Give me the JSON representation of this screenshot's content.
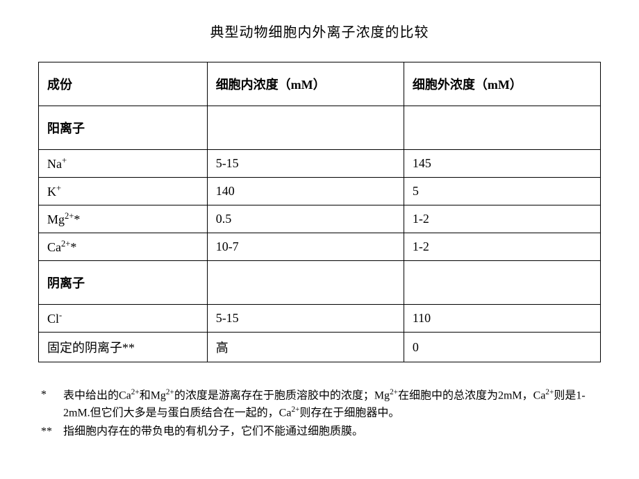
{
  "title": "典型动物细胞内外离子浓度的比较",
  "columns": {
    "c1": "成份",
    "c2": "细胞内浓度（mM）",
    "c3": "细胞外浓度（mM）"
  },
  "section1": "阳离子",
  "rows1": {
    "na": {
      "label_html": "Na<sup>+</sup>",
      "in": "5-15",
      "out": "145"
    },
    "k": {
      "label_html": "K<sup>+</sup>",
      "in": "140",
      "out": "5"
    },
    "mg": {
      "label_html": "Mg<sup>2+</sup>*",
      "in": "0.5",
      "out": "1-2"
    },
    "ca": {
      "label_html": "Ca<sup>2+</sup>*",
      "in": "10-7",
      "out": "1-2"
    }
  },
  "section2": "阴离子",
  "rows2": {
    "cl": {
      "label_html": "Cl<sup>-</sup>",
      "in": "5-15",
      "out": "110"
    },
    "fixed": {
      "label": "固定的阴离子**",
      "in": "高",
      "out": "0"
    }
  },
  "footnotes": {
    "f1_marker": "*",
    "f1_html": "表中给出的Ca<sup>2+</sup>和Mg<sup>2+</sup>的浓度是游离存在于胞质溶胶中的浓度；Mg<sup>2+</sup>在细胞中的总浓度为2mM，Ca<sup>2+</sup>则是1-2mM.但它们大多是与蛋白质结合在一起的，Ca<sup>2+</sup>则存在于细胞器中。",
    "f2_marker": "**",
    "f2": "指细胞内存在的带负电的有机分子，它们不能通过细胞质膜。"
  },
  "style": {
    "border_color": "#000000",
    "background": "#ffffff",
    "title_fontsize": 20,
    "cell_fontsize": 18,
    "footnote_fontsize": 16
  }
}
